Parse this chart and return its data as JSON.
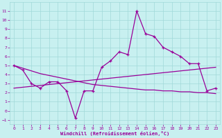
{
  "xlabel": "Windchill (Refroidissement éolien,°C)",
  "x_values": [
    0,
    1,
    2,
    3,
    4,
    5,
    6,
    7,
    8,
    9,
    10,
    11,
    12,
    13,
    14,
    15,
    16,
    17,
    18,
    19,
    20,
    21,
    22,
    23
  ],
  "line1_y": [
    5.0,
    4.5,
    3.0,
    2.5,
    3.2,
    3.2,
    2.2,
    -0.8,
    2.2,
    2.2,
    4.8,
    5.5,
    6.5,
    6.2,
    11.0,
    8.5,
    8.2,
    7.0,
    6.5,
    6.0,
    5.2,
    5.2,
    2.2,
    2.5
  ],
  "line_flat_y": [
    5.0,
    4.7,
    4.4,
    4.1,
    3.9,
    3.7,
    3.5,
    3.3,
    3.1,
    2.9,
    2.8,
    2.7,
    2.6,
    2.5,
    2.4,
    2.3,
    2.3,
    2.2,
    2.2,
    2.1,
    2.1,
    2.0,
    2.0,
    1.9
  ],
  "line_rise_y": [
    2.5,
    2.6,
    2.7,
    2.8,
    2.9,
    3.0,
    3.1,
    3.2,
    3.3,
    3.4,
    3.5,
    3.6,
    3.7,
    3.8,
    3.9,
    4.0,
    4.1,
    4.2,
    4.3,
    4.4,
    4.5,
    4.6,
    4.7,
    4.8
  ],
  "line_color": "#990099",
  "bg_color": "#c8f0f0",
  "grid_color": "#a0d8d8",
  "ylim": [
    -1.5,
    12
  ],
  "xlim": [
    -0.5,
    23.5
  ],
  "yticks": [
    -1,
    0,
    1,
    2,
    3,
    4,
    5,
    6,
    7,
    8,
    9,
    10,
    11
  ],
  "xticks": [
    0,
    1,
    2,
    3,
    4,
    5,
    6,
    7,
    8,
    9,
    10,
    11,
    12,
    13,
    14,
    15,
    16,
    17,
    18,
    19,
    20,
    21,
    22,
    23
  ]
}
